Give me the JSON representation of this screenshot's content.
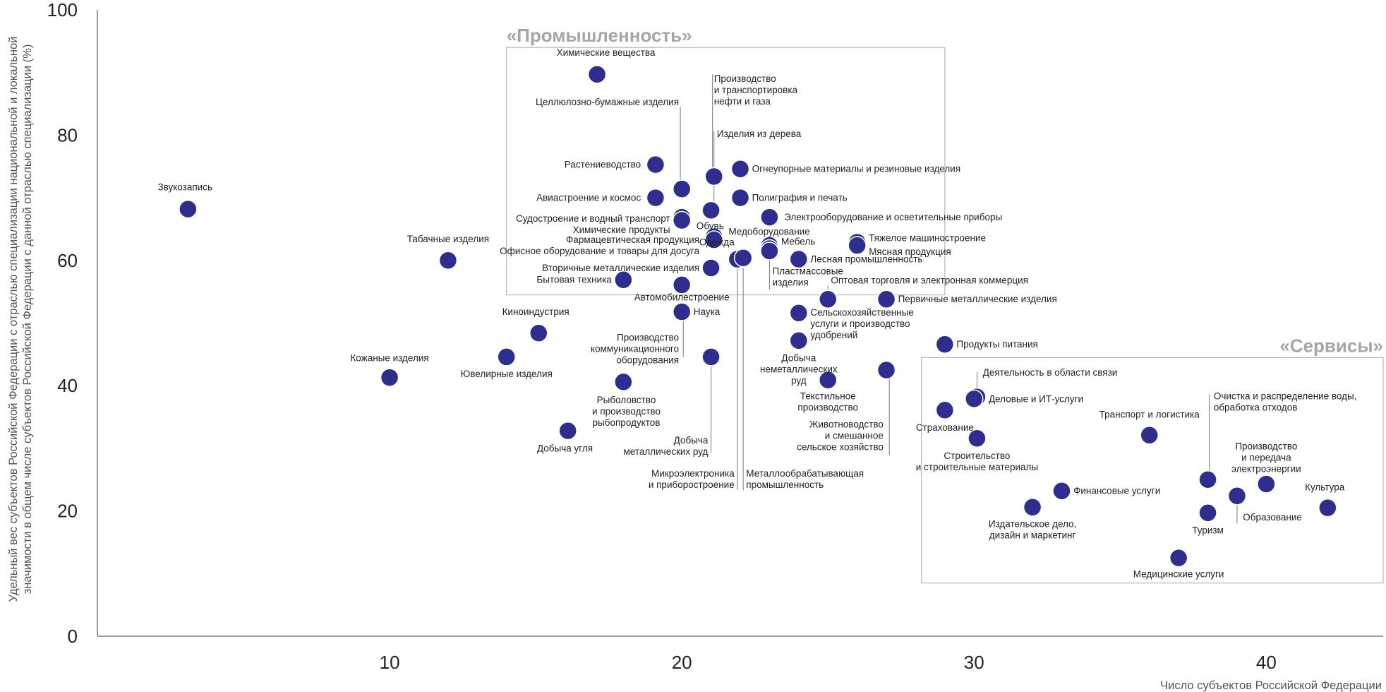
{
  "chart_data": {
    "type": "scatter",
    "title": "",
    "xlabel": "Число субъектов Российской Федерации",
    "ylabel": "Удельный вес субъектов Российской Федерации с отраслью специализации национальной и локальной значимости в общем числе субъектов Российской Федерации с данной отраслью специализации (%)",
    "xlim": [
      0,
      44
    ],
    "ylim": [
      0,
      100
    ],
    "x_ticks": [
      10,
      20,
      30,
      40
    ],
    "y_ticks": [
      0,
      20,
      40,
      60,
      80,
      100
    ],
    "grid": false,
    "point_color": "#2e2e8f",
    "groups": [
      {
        "title": "«Промышленность»",
        "range_x": [
          14,
          29
        ],
        "range_y": [
          54.5,
          94
        ]
      },
      {
        "title": "«Сервисы»",
        "range_x": [
          28.2,
          44
        ],
        "range_y": [
          8.5,
          44.5
        ]
      }
    ],
    "points": [
      {
        "name": "Звукозапись",
        "x": 3.1,
        "y": 68.2
      },
      {
        "name": "Табачные изделия",
        "x": 12,
        "y": 60
      },
      {
        "name": "Киноиндустрия",
        "x": 15.1,
        "y": 48.4
      },
      {
        "name": "Кожаные изделия",
        "x": 10,
        "y": 41.3
      },
      {
        "name": "Ювелирные изделия",
        "x": 14,
        "y": 44.6
      },
      {
        "name": "Добыча угля",
        "x": 16.1,
        "y": 32.8
      },
      {
        "name": "Рыболовство и производство рыбопродуктов",
        "x": 18,
        "y": 40.6
      },
      {
        "name": "Химические вещества",
        "x": 17.1,
        "y": 89.7
      },
      {
        "name": "Растениеводство",
        "x": 19.1,
        "y": 75.3
      },
      {
        "name": "Целлюлозно-бумажные изделия",
        "x": 20,
        "y": 71.4
      },
      {
        "name": "Авиастроение и космос",
        "x": 19.1,
        "y": 70
      },
      {
        "name": "Судостроение и водный транспорт",
        "x": 20,
        "y": 66.9
      },
      {
        "name": "Химические продукты",
        "x": 20,
        "y": 66.4
      },
      {
        "name": "Производство и транспортировка нефти и газа",
        "x": 21.1,
        "y": 73.4
      },
      {
        "name": "Изделия из дерева",
        "x": 21,
        "y": 68
      },
      {
        "name": "Обувь",
        "x": 21.1,
        "y": 63.8
      },
      {
        "name": "Фармацевтическая продукция",
        "x": 21.1,
        "y": 63.3
      },
      {
        "name": "Офисное оборудование и товары для досуга",
        "x": 21,
        "y": 58.8
      },
      {
        "name": "Вторичные металлические изделия",
        "x": 21,
        "y": 58.8
      },
      {
        "name": "Бытовая техника",
        "x": 18,
        "y": 56.9
      },
      {
        "name": "Автомобилестроение",
        "x": 20,
        "y": 56.1
      },
      {
        "name": "Наука",
        "x": 20,
        "y": 51.8
      },
      {
        "name": "Производство коммуникационного оборудования",
        "x": 21,
        "y": 44.6
      },
      {
        "name": "Добыча металлических руд",
        "x": 21,
        "y": 44.6
      },
      {
        "name": "Огнеупорные материалы и резиновые изделия",
        "x": 22,
        "y": 74.6
      },
      {
        "name": "Полиграфия и печать",
        "x": 22,
        "y": 70
      },
      {
        "name": "Электрооборудование и осветительные приборы",
        "x": 23,
        "y": 66.9
      },
      {
        "name": "Медоборудование",
        "x": 23,
        "y": 62.4
      },
      {
        "name": "Одежда",
        "x": 22,
        "y": 60.2
      },
      {
        "name": "Микроэлектроника и приборостроение",
        "x": 21.9,
        "y": 60.2
      },
      {
        "name": "Металлообрабатывающая промышленность",
        "x": 22.1,
        "y": 60.4
      },
      {
        "name": "Мебель",
        "x": 23,
        "y": 61.9
      },
      {
        "name": "Пластмассовые изделия",
        "x": 23,
        "y": 61.5
      },
      {
        "name": "Лесная промышленность",
        "x": 24,
        "y": 60.2
      },
      {
        "name": "Тяжелое машиностроение",
        "x": 26,
        "y": 62.9
      },
      {
        "name": "Мясная продукция",
        "x": 26,
        "y": 62.4
      },
      {
        "name": "Оптовая торговля и электронная коммерция",
        "x": 25,
        "y": 53.8
      },
      {
        "name": "Сельскохозяйственные услуги и производство удобрений",
        "x": 24,
        "y": 51.6
      },
      {
        "name": "Добыча неметаллических руд",
        "x": 24,
        "y": 47.2
      },
      {
        "name": "Текстильное производство",
        "x": 25,
        "y": 40.9
      },
      {
        "name": "Животноводство и смешанное сельское хозяйство",
        "x": 27,
        "y": 42.5
      },
      {
        "name": "Первичные металлические изделия",
        "x": 27,
        "y": 53.8
      },
      {
        "name": "Продукты питания",
        "x": 29,
        "y": 46.6
      },
      {
        "name": "Деятельность в области связи",
        "x": 30.1,
        "y": 38.2
      },
      {
        "name": "Деловые и ИТ-услуги",
        "x": 30,
        "y": 37.9
      },
      {
        "name": "Страхование",
        "x": 29,
        "y": 36.1
      },
      {
        "name": "Строительство и строительные материалы",
        "x": 30.1,
        "y": 31.6
      },
      {
        "name": "Транспорт и логистика",
        "x": 36,
        "y": 32.1
      },
      {
        "name": "Финансовые услуги",
        "x": 33,
        "y": 23.2
      },
      {
        "name": "Издательское дело, дизайн и маркетинг",
        "x": 32,
        "y": 20.6
      },
      {
        "name": "Медицинские услуги",
        "x": 37,
        "y": 12.5
      },
      {
        "name": "Очистка и распределение воды, обработка отходов",
        "x": 38,
        "y": 25
      },
      {
        "name": "Туризм",
        "x": 38,
        "y": 19.7
      },
      {
        "name": "Образование",
        "x": 39,
        "y": 22.4
      },
      {
        "name": "Производство и передача электроэнергии",
        "x": 40,
        "y": 24.3
      },
      {
        "name": "Культура",
        "x": 42.1,
        "y": 20.5
      }
    ]
  },
  "labels": [
    {
      "lines": [
        "Звукозапись"
      ],
      "anchor": "middle",
      "x": 3.0,
      "y": 71.2
    },
    {
      "lines": [
        "Табачные изделия"
      ],
      "anchor": "middle",
      "x": 12.0,
      "y": 62.9
    },
    {
      "lines": [
        "Киноиндустрия"
      ],
      "anchor": "middle",
      "x": 15.0,
      "y": 51.3
    },
    {
      "lines": [
        "Кожаные изделия"
      ],
      "anchor": "middle",
      "x": 10.0,
      "y": 43.9
    },
    {
      "lines": [
        "Ювелирные изделия"
      ],
      "anchor": "middle",
      "x": 14.0,
      "y": 41.4
    },
    {
      "lines": [
        "Добыча угля"
      ],
      "anchor": "middle",
      "x": 16.0,
      "y": 29.5
    },
    {
      "lines": [
        "Рыболовство",
        "и производство",
        "рыбопродуктов"
      ],
      "anchor": "middle",
      "x": 18.1,
      "y": 37.2
    },
    {
      "lines": [
        "Химические вещества"
      ],
      "anchor": "middle",
      "x": 17.4,
      "y": 92.7
    },
    {
      "lines": [
        "Растениеводство"
      ],
      "anchor": "end",
      "x": 18.6,
      "y": 74.8
    },
    {
      "lines": [
        "Целлюлозно-бумажные изделия"
      ],
      "anchor": "end",
      "x": 19.9,
      "y": 84.8
    },
    {
      "lines": [
        "Авиастроение и космос"
      ],
      "anchor": "end",
      "x": 18.6,
      "y": 69.5
    },
    {
      "lines": [
        "Судостроение и водный транспорт"
      ],
      "anchor": "end",
      "x": 19.6,
      "y": 66.2
    },
    {
      "lines": [
        "Химические продукты"
      ],
      "anchor": "end",
      "x": 19.6,
      "y": 64.4
    },
    {
      "lines": [
        "Производство",
        "и транспортировка",
        "нефти и газа"
      ],
      "anchor": "start",
      "x": 21.1,
      "y": 88.5
    },
    {
      "lines": [
        "Изделия из дерева"
      ],
      "anchor": "start",
      "x": 21.2,
      "y": 79.7
    },
    {
      "lines": [
        "Обувь"
      ],
      "anchor": "start",
      "x": 20.5,
      "y": 65.0
    },
    {
      "lines": [
        "Фармацевтическая продукция"
      ],
      "anchor": "end",
      "x": 20.6,
      "y": 62.8
    },
    {
      "lines": [
        "Офисное оборудование и товары для досуга"
      ],
      "anchor": "end",
      "x": 20.6,
      "y": 61.0
    },
    {
      "lines": [
        "Вторичные металлические изделия"
      ],
      "anchor": "end",
      "x": 20.6,
      "y": 58.3
    },
    {
      "lines": [
        "Бытовая техника"
      ],
      "anchor": "end",
      "x": 17.6,
      "y": 56.4
    },
    {
      "lines": [
        "Автомобилестроение"
      ],
      "anchor": "middle",
      "x": 20.0,
      "y": 53.6
    },
    {
      "lines": [
        "Наука"
      ],
      "anchor": "start",
      "x": 20.4,
      "y": 51.3
    },
    {
      "lines": [
        "Производство",
        "коммуникационного",
        "оборудования"
      ],
      "anchor": "end",
      "x": 19.9,
      "y": 47.2
    },
    {
      "lines": [
        "Добыча",
        "металлических руд"
      ],
      "anchor": "end",
      "x": 20.9,
      "y": 30.8
    },
    {
      "lines": [
        "Огнеупорные материалы и резиновые изделия"
      ],
      "anchor": "start",
      "x": 22.4,
      "y": 74.1
    },
    {
      "lines": [
        "Полиграфия и печать"
      ],
      "anchor": "start",
      "x": 22.4,
      "y": 69.5
    },
    {
      "lines": [
        "Электрооборудование и осветительные приборы"
      ],
      "anchor": "start",
      "x": 23.5,
      "y": 66.4
    },
    {
      "lines": [
        "Медоборудование"
      ],
      "anchor": "start",
      "x": 21.6,
      "y": 64.1
    },
    {
      "lines": [
        "Одежда"
      ],
      "anchor": "end",
      "x": 21.8,
      "y": 62.4
    },
    {
      "lines": [
        "Микроэлектроника",
        "и приборостроение"
      ],
      "anchor": "end",
      "x": 21.8,
      "y": 25.5
    },
    {
      "lines": [
        "Металлообрабатывающая",
        "промышленность"
      ],
      "anchor": "start",
      "x": 22.2,
      "y": 25.5
    },
    {
      "lines": [
        "Мебель"
      ],
      "anchor": "start",
      "x": 23.4,
      "y": 62.5
    },
    {
      "lines": [
        "Пластмассовые",
        "изделия"
      ],
      "anchor": "start",
      "x": 23.1,
      "y": 57.8
    },
    {
      "lines": [
        "Лесная промышленность"
      ],
      "anchor": "start",
      "x": 24.4,
      "y": 59.7
    },
    {
      "lines": [
        "Тяжелое машиностроение"
      ],
      "anchor": "start",
      "x": 26.4,
      "y": 63.1
    },
    {
      "lines": [
        "Мясная продукция"
      ],
      "anchor": "start",
      "x": 26.4,
      "y": 60.9
    },
    {
      "lines": [
        "Оптовая торговля и электронная коммерция"
      ],
      "anchor": "start",
      "x": 25.1,
      "y": 56.3
    },
    {
      "lines": [
        "Сельскохозяйственные",
        "услуги и производство",
        "удобрений"
      ],
      "anchor": "start",
      "x": 24.4,
      "y": 51.2
    },
    {
      "lines": [
        "Добыча",
        "неметаллических",
        "руд"
      ],
      "anchor": "middle",
      "x": 24.0,
      "y": 43.9
    },
    {
      "lines": [
        "Текстильное",
        "производство"
      ],
      "anchor": "middle",
      "x": 25.0,
      "y": 37.8
    },
    {
      "lines": [
        "Животноводство",
        "и смешанное",
        "сельское хозяйство"
      ],
      "anchor": "end",
      "x": 26.9,
      "y": 33.3
    },
    {
      "lines": [
        "Первичные металлические изделия"
      ],
      "anchor": "start",
      "x": 27.4,
      "y": 53.3
    },
    {
      "lines": [
        "Продукты питания"
      ],
      "anchor": "start",
      "x": 29.4,
      "y": 46.1
    },
    {
      "lines": [
        "Деятельность в области связи"
      ],
      "anchor": "start",
      "x": 30.3,
      "y": 41.6
    },
    {
      "lines": [
        "Деловые и ИТ-услуги"
      ],
      "anchor": "start",
      "x": 30.5,
      "y": 37.4
    },
    {
      "lines": [
        "Страхование"
      ],
      "anchor": "middle",
      "x": 29.0,
      "y": 32.8
    },
    {
      "lines": [
        "Строительство",
        "и строительные материалы"
      ],
      "anchor": "middle",
      "x": 30.1,
      "y": 28.3
    },
    {
      "lines": [
        "Транспорт и логистика"
      ],
      "anchor": "middle",
      "x": 36.0,
      "y": 34.9
    },
    {
      "lines": [
        "Финансовые услуги"
      ],
      "anchor": "start",
      "x": 33.4,
      "y": 22.7
    },
    {
      "lines": [
        "Издательское дело,",
        "дизайн и маркетинг"
      ],
      "anchor": "middle",
      "x": 32.0,
      "y": 17.4
    },
    {
      "lines": [
        "Медицинские услуги"
      ],
      "anchor": "middle",
      "x": 37.0,
      "y": 9.4
    },
    {
      "lines": [
        "Очистка и распределение воды,",
        "обработка отходов"
      ],
      "anchor": "start",
      "x": 38.2,
      "y": 37.8
    },
    {
      "lines": [
        "Туризм"
      ],
      "anchor": "middle",
      "x": 38.0,
      "y": 16.4
    },
    {
      "lines": [
        "Образование"
      ],
      "anchor": "start",
      "x": 39.2,
      "y": 18.5
    },
    {
      "lines": [
        "Производство",
        "и передача",
        "электроэнергии"
      ],
      "anchor": "middle",
      "x": 40.0,
      "y": 29.8
    },
    {
      "lines": [
        "Культура"
      ],
      "anchor": "middle",
      "x": 42.0,
      "y": 23.3
    }
  ],
  "leaders": [
    {
      "x": 19.95,
      "y1": 84.5,
      "y2": 72.5
    },
    {
      "x": 21.05,
      "y1": 89.7,
      "y2": 74.4
    },
    {
      "x": 21.1,
      "y1": 80.6,
      "y2": 69.3
    },
    {
      "x": 20.05,
      "y1": 53.2,
      "y2": 44.6
    },
    {
      "x": 21.0,
      "y1": 43.5,
      "y2": 29.3
    },
    {
      "x": 21.9,
      "y1": 59.4,
      "y2": 23.3
    },
    {
      "x": 22.1,
      "y1": 59.4,
      "y2": 23.3
    },
    {
      "x": 23.0,
      "y1": 60.8,
      "y2": 55.4
    },
    {
      "x": 25.0,
      "y1": 56.0,
      "y2": 54.5
    },
    {
      "x": 27.1,
      "y1": 41.5,
      "y2": 28.9
    },
    {
      "x": 30.1,
      "y1": 42.2,
      "y2": 38.9
    },
    {
      "x": 38.05,
      "y1": 38.6,
      "y2": 25.8
    },
    {
      "x": 39.0,
      "y1": 21.6,
      "y2": 18.0
    }
  ]
}
